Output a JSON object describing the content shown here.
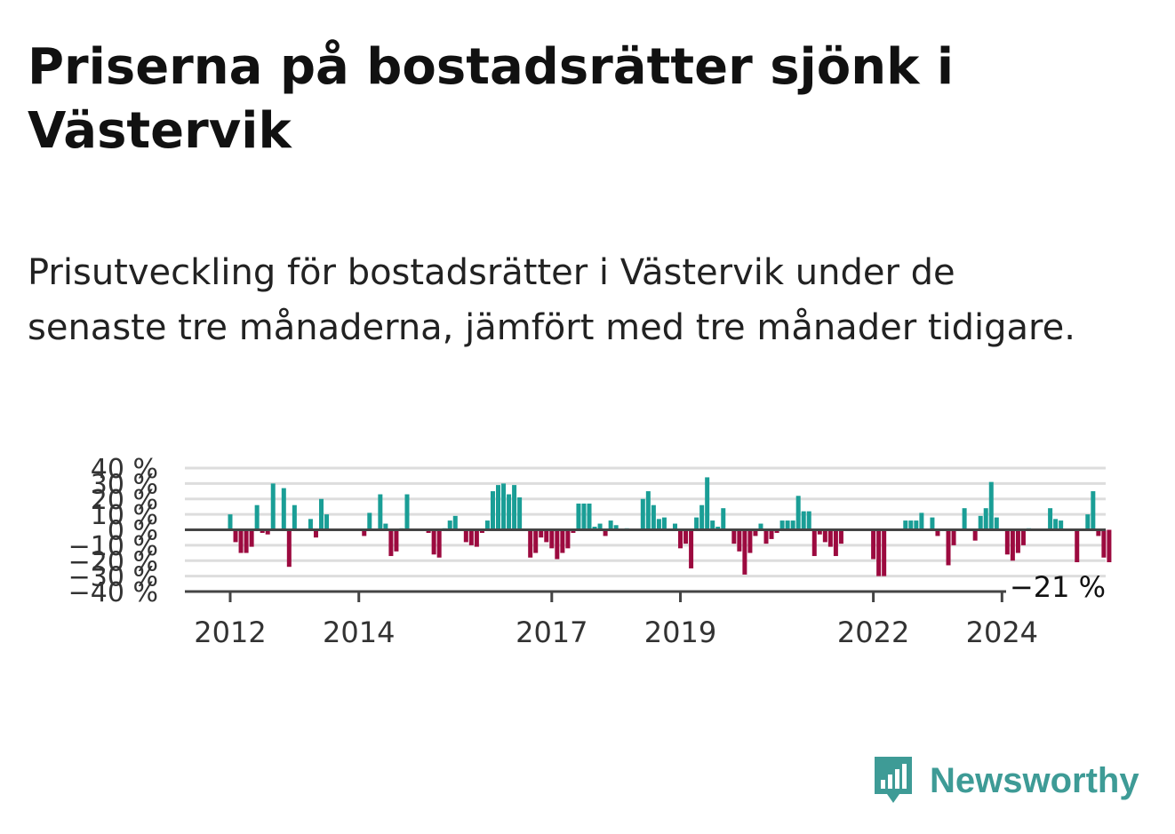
{
  "header": {
    "title": "Priserna på bostadsrätter sjönk i Västervik",
    "subtitle": "Prisutveckling för bostadsrätter i Västervik under de senaste tre månaderna, jämfört med tre månader tidigare."
  },
  "branding": {
    "logo_text": "Newsworthy",
    "logo_icon": "bar-chart-badge-icon",
    "logo_color": "#3e9b96"
  },
  "colors": {
    "positive": "#1a9e96",
    "negative": "#9c0a3f",
    "gridline": "#dddddd",
    "zeroline": "#444444"
  },
  "chart_data": {
    "type": "bar",
    "title": "",
    "xlabel": "",
    "ylabel": "",
    "ylim": [
      -40,
      40
    ],
    "yticks": [
      40,
      30,
      20,
      10,
      0,
      -10,
      -20,
      -30,
      -40
    ],
    "ytick_labels": [
      "40 %",
      "30 %",
      "20 %",
      "10 %",
      "0 %",
      "−10 %",
      "−20 %",
      "−30 %",
      "−40 %"
    ],
    "x_start": "2012-01",
    "x_ticks": [
      {
        "label": "2012",
        "month": "2012-01"
      },
      {
        "label": "2014",
        "month": "2014-01"
      },
      {
        "label": "2017",
        "month": "2017-01"
      },
      {
        "label": "2019",
        "month": "2019-01"
      },
      {
        "label": "2022",
        "month": "2022-01"
      },
      {
        "label": "2024",
        "month": "2024-01"
      }
    ],
    "grid": true,
    "last_value_label": "−21 %",
    "values": [
      10,
      -8,
      -15,
      -15,
      -11,
      16,
      -2,
      -3,
      30,
      0,
      27,
      -24,
      16,
      0,
      0,
      7,
      -5,
      20,
      10,
      0,
      0,
      0,
      0,
      0,
      0,
      -4,
      11,
      0,
      23,
      4,
      -17,
      -14,
      1,
      23,
      0,
      0,
      0,
      -2,
      -16,
      -18,
      1,
      6,
      9,
      0,
      -8,
      -10,
      -11,
      -2,
      6,
      25,
      29,
      30,
      23,
      29,
      21,
      0,
      -18,
      -15,
      -5,
      -8,
      -12,
      -19,
      -15,
      -12,
      -2,
      17,
      17,
      17,
      2,
      4,
      -4,
      6,
      3,
      0,
      1,
      0,
      0,
      20,
      25,
      16,
      7,
      8,
      0,
      4,
      -12,
      -9,
      -25,
      8,
      16,
      34,
      6,
      2,
      14,
      0,
      -9,
      -14,
      -29,
      -15,
      -4,
      4,
      -9,
      -6,
      -2,
      6,
      6,
      6,
      22,
      12,
      12,
      -17,
      -3,
      -8,
      -11,
      -17,
      -9,
      0,
      0,
      0,
      0,
      0,
      -19,
      -30,
      -30,
      0,
      0,
      0,
      6,
      6,
      6,
      11,
      0,
      8,
      -4,
      0,
      -23,
      -10,
      0,
      14,
      0,
      -7,
      9,
      14,
      31,
      8,
      0,
      -16,
      -20,
      -15,
      -10,
      1,
      0,
      0,
      0,
      14,
      7,
      6,
      0,
      0,
      -21,
      0,
      10,
      25,
      -4,
      -18,
      -21
    ]
  }
}
